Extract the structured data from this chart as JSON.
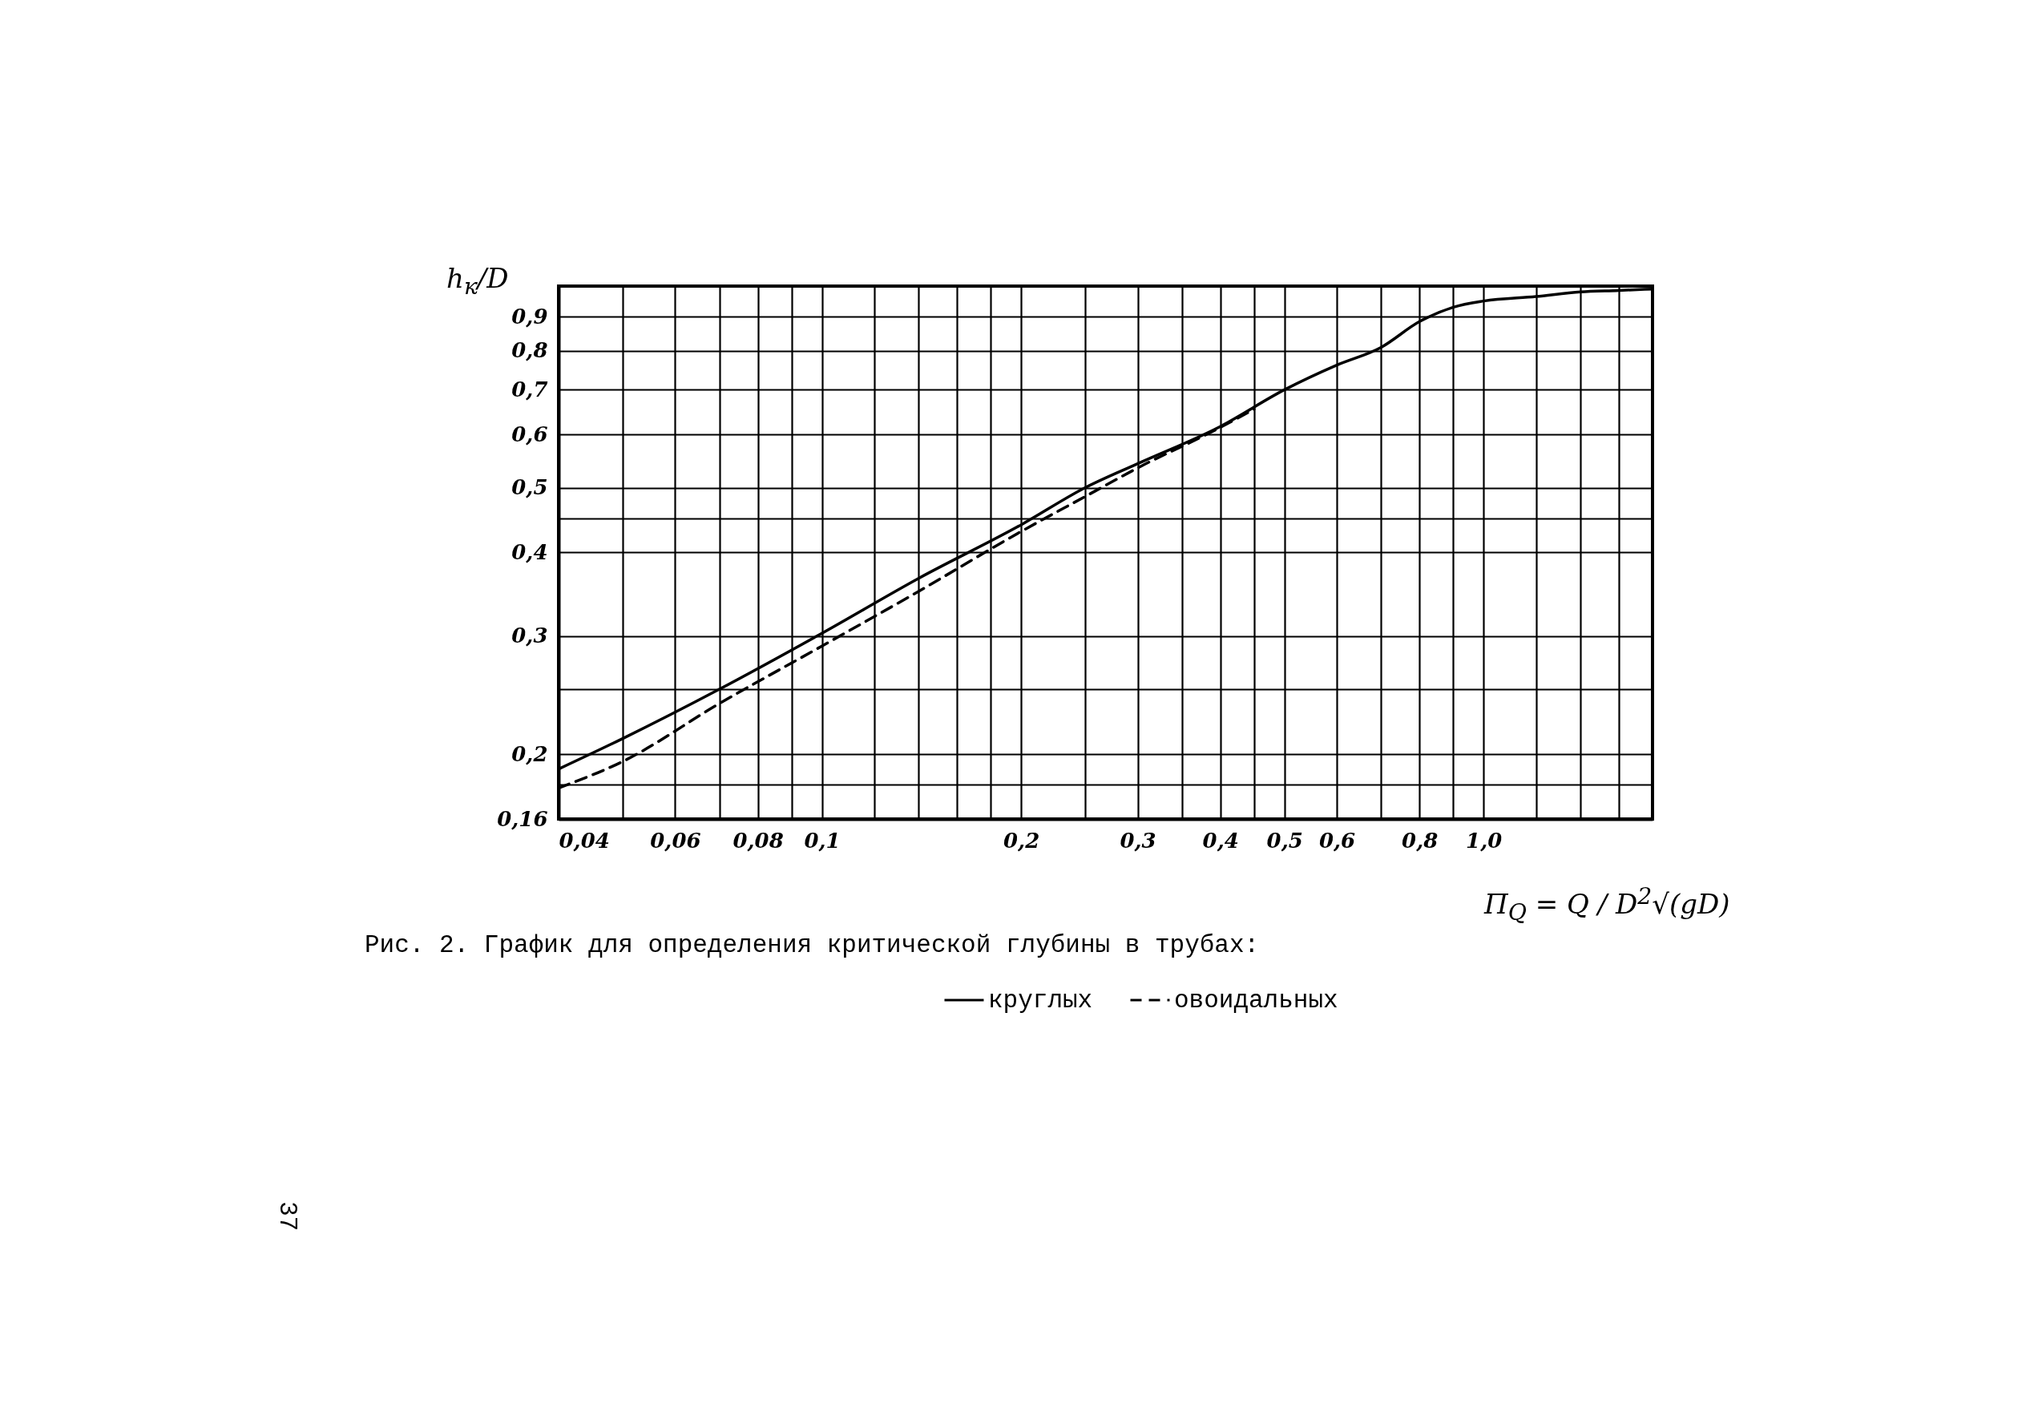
{
  "chart_data": {
    "type": "line",
    "ylabel": "h$_{к}$/D",
    "xlabel": "П$_{Q}$ = Q / D$^{2}$√(gD)",
    "log": "xy",
    "xlim": [
      0.04,
      1.8
    ],
    "ylim": [
      0.16,
      1.0
    ],
    "xticks": [
      {
        "value": 0.04,
        "label": "0,04"
      },
      {
        "value": 0.05,
        "label": null
      },
      {
        "value": 0.06,
        "label": "0,06"
      },
      {
        "value": 0.07,
        "label": null
      },
      {
        "value": 0.08,
        "label": "0,08"
      },
      {
        "value": 0.09,
        "label": null
      },
      {
        "value": 0.1,
        "label": "0,1"
      },
      {
        "value": 0.12,
        "label": null
      },
      {
        "value": 0.14,
        "label": null
      },
      {
        "value": 0.16,
        "label": null
      },
      {
        "value": 0.18,
        "label": null
      },
      {
        "value": 0.2,
        "label": "0,2"
      },
      {
        "value": 0.25,
        "label": null
      },
      {
        "value": 0.3,
        "label": "0,3"
      },
      {
        "value": 0.35,
        "label": null
      },
      {
        "value": 0.4,
        "label": "0,4"
      },
      {
        "value": 0.45,
        "label": null
      },
      {
        "value": 0.5,
        "label": "0,5"
      },
      {
        "value": 0.6,
        "label": "0,6"
      },
      {
        "value": 0.7,
        "label": null
      },
      {
        "value": 0.8,
        "label": "0,8"
      },
      {
        "value": 0.9,
        "label": null
      },
      {
        "value": 1.0,
        "label": "1,0"
      },
      {
        "value": 1.2,
        "label": null
      },
      {
        "value": 1.4,
        "label": null
      },
      {
        "value": 1.6,
        "label": null
      }
    ],
    "yticks": [
      {
        "value": 0.16,
        "label": "0,16"
      },
      {
        "value": 0.18,
        "label": null
      },
      {
        "value": 0.2,
        "label": "0,2"
      },
      {
        "value": 0.25,
        "label": null
      },
      {
        "value": 0.3,
        "label": "0,3"
      },
      {
        "value": 0.4,
        "label": "0,4"
      },
      {
        "value": 0.45,
        "label": null
      },
      {
        "value": 0.5,
        "label": "0,5"
      },
      {
        "value": 0.6,
        "label": "0,6"
      },
      {
        "value": 0.7,
        "label": "0,7"
      },
      {
        "value": 0.8,
        "label": "0,8"
      },
      {
        "value": 0.9,
        "label": "0,9"
      },
      {
        "value": 1.0,
        "label": null
      }
    ],
    "grid": true,
    "legend": "bottom",
    "series": [
      {
        "name": "круглых",
        "color": "#000000",
        "line_style": "solid",
        "x": [
          0.04,
          0.05,
          0.07,
          0.1,
          0.14,
          0.2,
          0.25,
          0.3,
          0.4,
          0.5,
          0.6,
          0.7,
          0.8,
          0.9,
          1.0,
          1.2,
          1.4,
          1.6,
          1.8
        ],
        "values": [
          0.19,
          0.211,
          0.25,
          0.303,
          0.366,
          0.44,
          0.5,
          0.543,
          0.617,
          0.7,
          0.762,
          0.81,
          0.885,
          0.93,
          0.95,
          0.965,
          0.98,
          0.985,
          0.99
        ]
      },
      {
        "name": "овоидальных",
        "color": "#000000",
        "line_style": "dashed",
        "x": [
          0.04,
          0.05,
          0.07,
          0.1,
          0.14,
          0.2,
          0.25,
          0.3,
          0.4,
          0.45
        ],
        "values": [
          0.178,
          0.195,
          0.238,
          0.29,
          0.35,
          0.43,
          0.485,
          0.535,
          0.615,
          0.655
        ]
      }
    ],
    "annotations": [
      "Рис. 2. График для определения критической глубины в трубах:",
      "37"
    ]
  }
}
